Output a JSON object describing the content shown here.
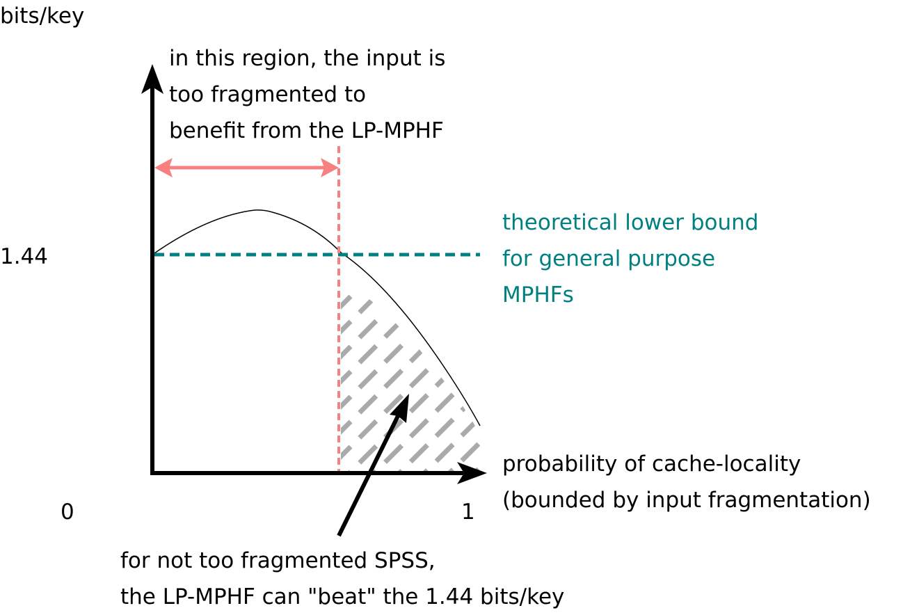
{
  "y_axis": {
    "unit_label": "bits/key",
    "tick_144": "1.44",
    "tick_0": "0"
  },
  "x_axis": {
    "label_lines": [
      "probability of cache-locality",
      "(bounded by input fragmentation)"
    ],
    "tick_1": "1"
  },
  "annotations": {
    "fragmented_region": [
      "in this region, the input is",
      "too fragmented to",
      "benefit from the LP-MPHF"
    ],
    "lower_bound": [
      "theoretical lower bound",
      "for general purpose",
      "MPHFs"
    ],
    "beat_note": [
      "for not too fragmented SPSS,",
      "the LP-MPHF can \"beat\" the 1.44 bits/key"
    ]
  },
  "colors": {
    "axis": "#000000",
    "threshold_line": "#f88080",
    "region_arrow": "#f88080",
    "lower_bound_line": "#008080",
    "hatch": "#aaaaaa",
    "curve": "#000000"
  }
}
